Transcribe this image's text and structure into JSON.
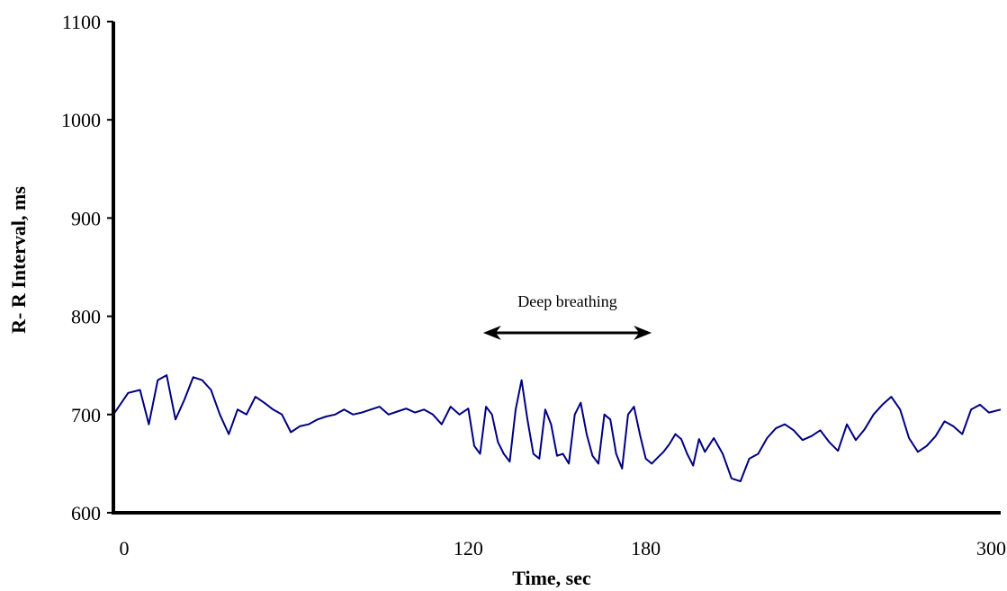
{
  "chart_data": {
    "type": "line",
    "title": "",
    "xlabel": "Time, sec",
    "ylabel": "R- R Interval, ms",
    "xlim": [
      0,
      300
    ],
    "ylim": [
      600,
      1100
    ],
    "xticks": [
      0,
      120,
      180,
      300
    ],
    "yticks": [
      600,
      700,
      800,
      900,
      1000,
      1100
    ],
    "grid": false,
    "legend": "none",
    "series": [
      {
        "color": "#000080",
        "x": [
          0,
          5,
          9,
          12,
          15,
          18,
          21,
          24,
          27,
          30,
          33,
          36,
          39,
          42,
          45,
          48,
          51,
          54,
          57,
          60,
          63,
          66,
          69,
          72,
          75,
          78,
          81,
          84,
          87,
          90,
          93,
          96,
          99,
          102,
          105,
          108,
          111,
          114,
          117,
          120,
          122,
          124,
          126,
          128,
          130,
          132,
          134,
          136,
          138,
          140,
          142,
          144,
          146,
          148,
          150,
          152,
          154,
          156,
          158,
          160,
          162,
          164,
          166,
          168,
          170,
          172,
          174,
          176,
          178,
          180,
          182,
          184,
          186,
          188,
          190,
          192,
          194,
          196,
          198,
          200,
          203,
          206,
          209,
          212,
          215,
          218,
          221,
          224,
          227,
          230,
          233,
          236,
          239,
          242,
          245,
          248,
          251,
          254,
          257,
          260,
          263,
          266,
          269,
          272,
          275,
          278,
          281,
          284,
          287,
          290,
          293,
          296,
          300
        ],
        "y": [
          700,
          722,
          725,
          690,
          735,
          740,
          695,
          715,
          738,
          735,
          725,
          700,
          680,
          705,
          700,
          718,
          712,
          705,
          700,
          682,
          688,
          690,
          695,
          698,
          700,
          705,
          700,
          702,
          705,
          708,
          700,
          703,
          706,
          702,
          705,
          700,
          690,
          708,
          700,
          706,
          668,
          660,
          708,
          700,
          672,
          660,
          652,
          705,
          735,
          695,
          660,
          655,
          705,
          690,
          658,
          660,
          650,
          700,
          712,
          680,
          658,
          650,
          700,
          695,
          660,
          645,
          700,
          708,
          680,
          655,
          650,
          656,
          662,
          670,
          680,
          675,
          660,
          648,
          675,
          662,
          676,
          660,
          635,
          632,
          655,
          660,
          676,
          686,
          690,
          684,
          674,
          678,
          684,
          672,
          663,
          690,
          674,
          685,
          700,
          710,
          718,
          705,
          676,
          662,
          668,
          678,
          693,
          688,
          680,
          705,
          710,
          702,
          705
        ]
      }
    ],
    "annotations": [
      {
        "text": "Deep breathing",
        "arrow_x": [
          125,
          182
        ]
      }
    ]
  }
}
